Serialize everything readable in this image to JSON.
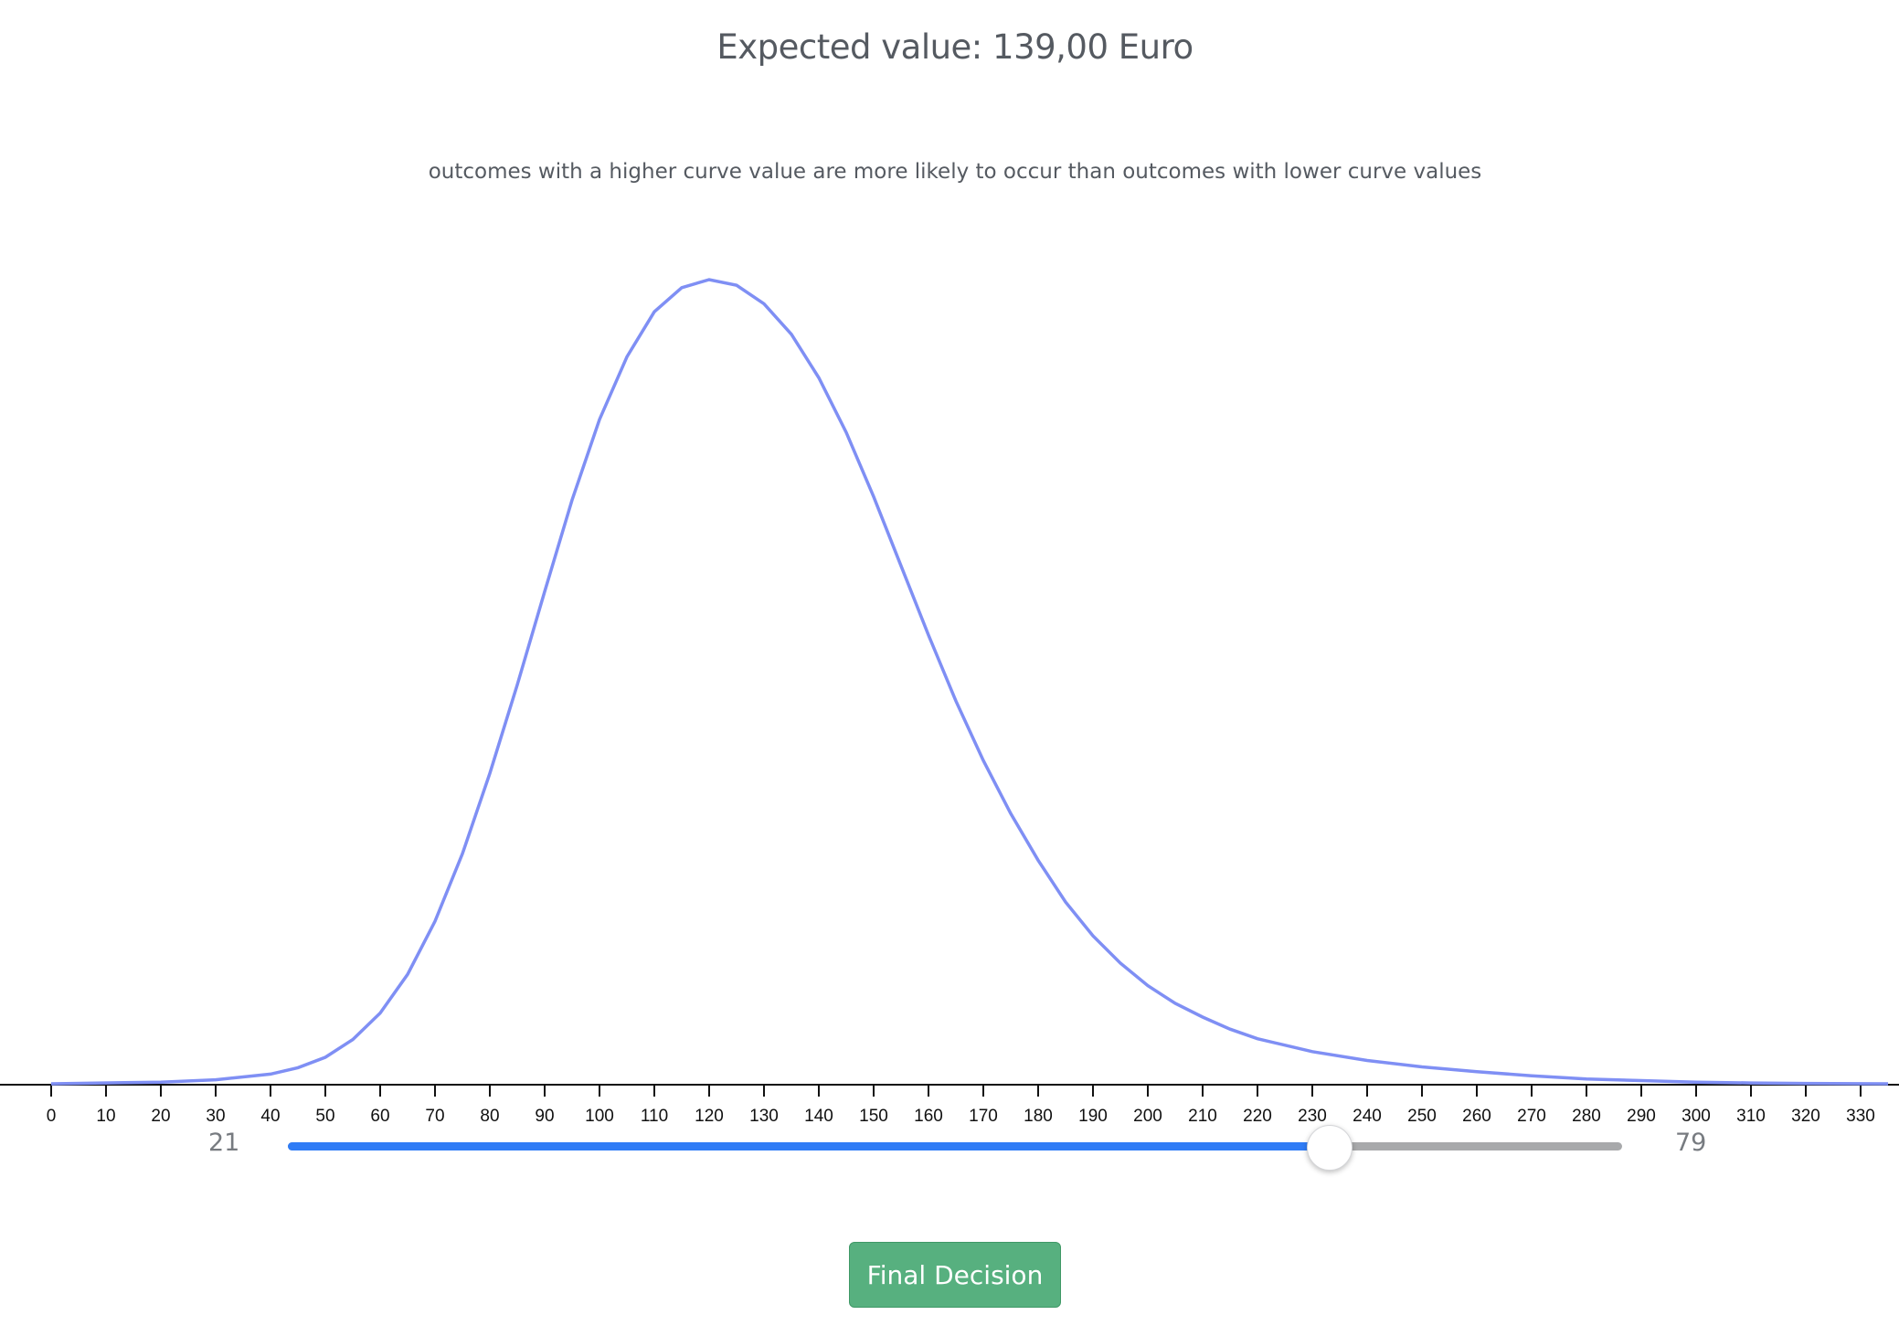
{
  "header": {
    "title": "Expected value: 139,00 Euro",
    "subtitle": "outcomes with a higher curve value are more likely to occur than outcomes with lower curve values"
  },
  "chart_data": {
    "type": "line",
    "xlim": [
      0,
      335
    ],
    "x_ticks": [
      0,
      10,
      20,
      30,
      40,
      50,
      60,
      70,
      80,
      90,
      100,
      110,
      120,
      130,
      140,
      150,
      160,
      170,
      180,
      190,
      200,
      210,
      220,
      230,
      240,
      250,
      260,
      270,
      280,
      290,
      300,
      310,
      320,
      330
    ],
    "series": [
      {
        "color": "#7f8ff4",
        "x": [
          0,
          20,
          30,
          40,
          45,
          50,
          55,
          60,
          65,
          70,
          75,
          80,
          85,
          90,
          95,
          100,
          105,
          110,
          115,
          120,
          125,
          130,
          135,
          140,
          145,
          150,
          155,
          160,
          165,
          170,
          175,
          180,
          185,
          190,
          195,
          200,
          205,
          210,
          215,
          220,
          230,
          240,
          250,
          260,
          270,
          280,
          290,
          300,
          310,
          320,
          335
        ],
        "y": [
          0,
          0.2,
          0.5,
          1.2,
          2.0,
          3.3,
          5.5,
          8.8,
          13.6,
          20.2,
          28.6,
          38.6,
          49.6,
          61.2,
          72.6,
          82.6,
          90.4,
          96.0,
          99.0,
          100,
          99.3,
          97.0,
          93.2,
          87.8,
          81.0,
          73.0,
          64.4,
          55.8,
          47.6,
          40.2,
          33.6,
          27.8,
          22.6,
          18.4,
          15.0,
          12.2,
          10.0,
          8.3,
          6.8,
          5.6,
          4.0,
          2.9,
          2.1,
          1.5,
          1.0,
          0.6,
          0.4,
          0.2,
          0.1,
          0.05,
          0
        ]
      }
    ]
  },
  "slider": {
    "min_label": "21",
    "max_label": "79",
    "value_fraction": 0.78
  },
  "button": {
    "label": "Final Decision",
    "color": "#57b07f"
  }
}
